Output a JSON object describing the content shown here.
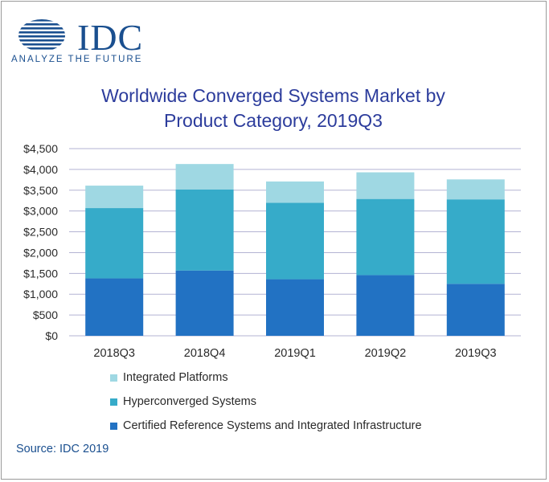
{
  "logo": {
    "name": "IDC",
    "tagline": "ANALYZE THE FUTURE",
    "color": "#1a4f8f"
  },
  "source": "Source: IDC 2019",
  "chart_data": {
    "type": "bar",
    "stacked": true,
    "title": "Worldwide Converged Systems Market by Product Category, 2019Q3",
    "title_lines": [
      "Worldwide Converged Systems Market by",
      "Product Category, 2019Q3"
    ],
    "categories": [
      "2018Q3",
      "2018Q4",
      "2019Q1",
      "2019Q2",
      "2019Q3"
    ],
    "series": [
      {
        "name": "Certified Reference Systems and Integrated Infrastructure",
        "color": "#2272c3",
        "values": [
          1380,
          1570,
          1360,
          1460,
          1250
        ]
      },
      {
        "name": "Hyperconverged Systems",
        "color": "#36abc9",
        "values": [
          1690,
          1950,
          1840,
          1830,
          2030
        ]
      },
      {
        "name": "Integrated Platforms",
        "color": "#9fd8e3",
        "values": [
          540,
          610,
          510,
          640,
          480
        ]
      }
    ],
    "legend_order": [
      2,
      1,
      0
    ],
    "ylim": [
      0,
      4500
    ],
    "yticks": [
      0,
      500,
      1000,
      1500,
      2000,
      2500,
      3000,
      3500,
      4000,
      4500
    ],
    "ytick_labels": [
      "$0",
      "$500",
      "$1,000",
      "$1,500",
      "$2,000",
      "$2,500",
      "$3,000",
      "$3,500",
      "$4,000",
      "$4,500"
    ],
    "xlabel": "",
    "ylabel": "",
    "grid": true,
    "grid_color": "#b3b3d3",
    "legend_position": "bottom"
  }
}
